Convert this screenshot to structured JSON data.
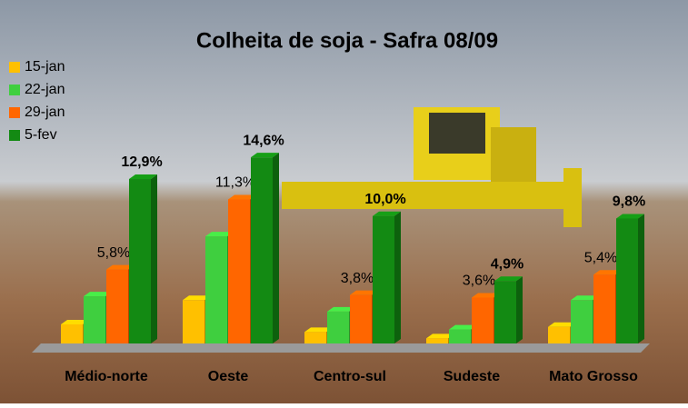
{
  "chart_data": {
    "type": "bar3d",
    "title": "Colheita de soja - Safra 08/09",
    "categories": [
      "Médio-norte",
      "Oeste",
      "Centro-sul",
      "Sudeste",
      "Mato Grosso"
    ],
    "series": [
      {
        "name": "15-jan",
        "color": "#ffc000",
        "values": [
          1.5,
          3.4,
          0.9,
          0.4,
          1.3
        ]
      },
      {
        "name": "22-jan",
        "color": "#3fcf3f",
        "values": [
          3.7,
          8.4,
          2.5,
          1.1,
          3.4
        ]
      },
      {
        "name": "29-jan",
        "color": "#ff6600",
        "values": [
          5.8,
          11.3,
          3.8,
          3.6,
          5.4
        ],
        "value_labels": [
          null,
          null,
          null,
          null,
          null
        ],
        "printed_labels": [
          "5,8%",
          "11,3%",
          "3,8%",
          "3,6%",
          "5,4%"
        ]
      },
      {
        "name": "5-fev",
        "color": "#138a13",
        "values": [
          12.9,
          14.6,
          10.0,
          4.9,
          9.8
        ],
        "value_labels": [
          "12,9%",
          "14,6%",
          "10,0%",
          "4,9%",
          "9,8%"
        ]
      }
    ],
    "legend": "top-left"
  }
}
